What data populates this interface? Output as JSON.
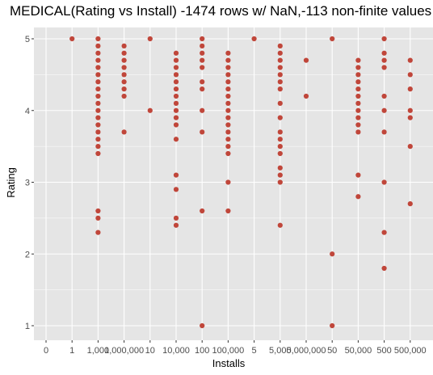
{
  "chart_data": {
    "type": "scatter",
    "title": "MEDICAL(Rating vs Install) -1474 rows w/ NaN,-113 non-finite values",
    "xlabel": "Installs",
    "ylabel": "Rating",
    "ylim": [
      0.8,
      5.2
    ],
    "yticks": [
      1,
      2,
      3,
      4,
      5
    ],
    "categories": [
      "0",
      "1",
      "1,000",
      "1,000,000",
      "10",
      "10,000",
      "100",
      "100,000",
      "5",
      "5,000",
      "5,000,000",
      "50",
      "50,000",
      "500",
      "500,000"
    ],
    "grid": true,
    "background": "#e5e5e5",
    "grid_color": "#ffffff",
    "point_color": "#c0463a",
    "series": [
      {
        "points": [
          [
            "1",
            5.0
          ],
          [
            "1,000",
            5.0
          ],
          [
            "1,000",
            4.9
          ],
          [
            "1,000",
            4.8
          ],
          [
            "1,000",
            4.7
          ],
          [
            "1,000",
            4.6
          ],
          [
            "1,000",
            4.5
          ],
          [
            "1,000",
            4.4
          ],
          [
            "1,000",
            4.3
          ],
          [
            "1,000",
            4.2
          ],
          [
            "1,000",
            4.1
          ],
          [
            "1,000",
            4.0
          ],
          [
            "1,000",
            3.9
          ],
          [
            "1,000",
            3.8
          ],
          [
            "1,000",
            3.7
          ],
          [
            "1,000",
            3.6
          ],
          [
            "1,000",
            3.5
          ],
          [
            "1,000",
            3.4
          ],
          [
            "1,000",
            2.6
          ],
          [
            "1,000",
            2.5
          ],
          [
            "1,000",
            2.3
          ],
          [
            "1,000,000",
            4.9
          ],
          [
            "1,000,000",
            4.8
          ],
          [
            "1,000,000",
            4.7
          ],
          [
            "1,000,000",
            4.6
          ],
          [
            "1,000,000",
            4.5
          ],
          [
            "1,000,000",
            4.4
          ],
          [
            "1,000,000",
            4.3
          ],
          [
            "1,000,000",
            4.2
          ],
          [
            "1,000,000",
            3.7
          ],
          [
            "10",
            5.0
          ],
          [
            "10",
            4.0
          ],
          [
            "10,000",
            4.8
          ],
          [
            "10,000",
            4.7
          ],
          [
            "10,000",
            4.6
          ],
          [
            "10,000",
            4.5
          ],
          [
            "10,000",
            4.4
          ],
          [
            "10,000",
            4.3
          ],
          [
            "10,000",
            4.2
          ],
          [
            "10,000",
            4.1
          ],
          [
            "10,000",
            4.0
          ],
          [
            "10,000",
            3.9
          ],
          [
            "10,000",
            3.8
          ],
          [
            "10,000",
            3.6
          ],
          [
            "10,000",
            3.1
          ],
          [
            "10,000",
            2.9
          ],
          [
            "10,000",
            2.5
          ],
          [
            "10,000",
            2.4
          ],
          [
            "100",
            5.0
          ],
          [
            "100",
            4.9
          ],
          [
            "100",
            4.8
          ],
          [
            "100",
            4.7
          ],
          [
            "100",
            4.6
          ],
          [
            "100",
            4.4
          ],
          [
            "100",
            4.3
          ],
          [
            "100",
            4.0
          ],
          [
            "100",
            3.7
          ],
          [
            "100",
            2.6
          ],
          [
            "100",
            1.0
          ],
          [
            "100,000",
            4.8
          ],
          [
            "100,000",
            4.7
          ],
          [
            "100,000",
            4.6
          ],
          [
            "100,000",
            4.5
          ],
          [
            "100,000",
            4.4
          ],
          [
            "100,000",
            4.3
          ],
          [
            "100,000",
            4.2
          ],
          [
            "100,000",
            4.1
          ],
          [
            "100,000",
            4.0
          ],
          [
            "100,000",
            3.9
          ],
          [
            "100,000",
            3.8
          ],
          [
            "100,000",
            3.7
          ],
          [
            "100,000",
            3.6
          ],
          [
            "100,000",
            3.5
          ],
          [
            "100,000",
            3.4
          ],
          [
            "100,000",
            3.0
          ],
          [
            "100,000",
            2.6
          ],
          [
            "5",
            5.0
          ],
          [
            "5,000",
            4.9
          ],
          [
            "5,000",
            4.8
          ],
          [
            "5,000",
            4.7
          ],
          [
            "5,000",
            4.6
          ],
          [
            "5,000",
            4.5
          ],
          [
            "5,000",
            4.4
          ],
          [
            "5,000",
            4.3
          ],
          [
            "5,000",
            4.1
          ],
          [
            "5,000",
            3.9
          ],
          [
            "5,000",
            3.7
          ],
          [
            "5,000",
            3.6
          ],
          [
            "5,000",
            3.5
          ],
          [
            "5,000",
            3.4
          ],
          [
            "5,000",
            3.2
          ],
          [
            "5,000",
            3.1
          ],
          [
            "5,000",
            3.0
          ],
          [
            "5,000",
            2.4
          ],
          [
            "5,000,000",
            4.7
          ],
          [
            "5,000,000",
            4.2
          ],
          [
            "50",
            5.0
          ],
          [
            "50",
            2.0
          ],
          [
            "50",
            1.0
          ],
          [
            "50,000",
            4.7
          ],
          [
            "50,000",
            4.6
          ],
          [
            "50,000",
            4.5
          ],
          [
            "50,000",
            4.4
          ],
          [
            "50,000",
            4.3
          ],
          [
            "50,000",
            4.2
          ],
          [
            "50,000",
            4.1
          ],
          [
            "50,000",
            4.0
          ],
          [
            "50,000",
            3.9
          ],
          [
            "50,000",
            3.8
          ],
          [
            "50,000",
            3.7
          ],
          [
            "50,000",
            3.1
          ],
          [
            "50,000",
            2.8
          ],
          [
            "500",
            5.0
          ],
          [
            "500",
            4.8
          ],
          [
            "500",
            4.7
          ],
          [
            "500",
            4.6
          ],
          [
            "500",
            4.2
          ],
          [
            "500",
            4.0
          ],
          [
            "500",
            3.7
          ],
          [
            "500",
            3.0
          ],
          [
            "500",
            2.3
          ],
          [
            "500",
            1.8
          ],
          [
            "500,000",
            4.7
          ],
          [
            "500,000",
            4.5
          ],
          [
            "500,000",
            4.3
          ],
          [
            "500,000",
            4.0
          ],
          [
            "500,000",
            3.9
          ],
          [
            "500,000",
            3.5
          ],
          [
            "500,000",
            2.7
          ]
        ]
      }
    ]
  }
}
